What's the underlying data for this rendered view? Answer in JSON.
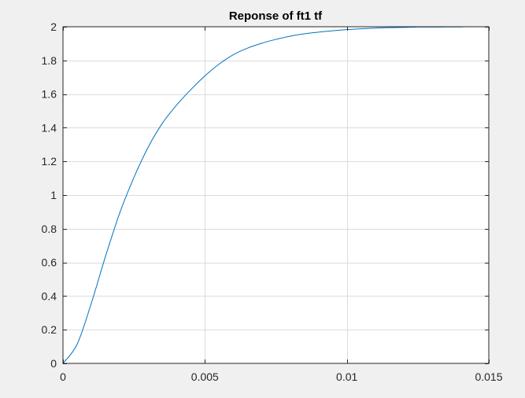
{
  "chart_data": {
    "type": "line",
    "title": "Reponse of ft1 tf",
    "xlabel": "",
    "ylabel": "",
    "xlim": [
      0,
      0.015
    ],
    "ylim": [
      0,
      2
    ],
    "xticks": [
      0,
      0.005,
      0.01,
      0.015
    ],
    "xtick_labels": [
      "0",
      "0.005",
      "0.01",
      "0.015"
    ],
    "yticks": [
      0,
      0.2,
      0.4,
      0.6,
      0.8,
      1,
      1.2,
      1.4,
      1.6,
      1.8,
      2
    ],
    "ytick_labels": [
      "0",
      "0.2",
      "0.4",
      "0.6",
      "0.8",
      "1",
      "1.2",
      "1.4",
      "1.6",
      "1.8",
      "2"
    ],
    "grid": true,
    "series": [
      {
        "color": "#0072bd",
        "x": [
          0,
          0.0005,
          0.001,
          0.0015,
          0.002,
          0.0025,
          0.003,
          0.0035,
          0.004,
          0.0045,
          0.005,
          0.0055,
          0.006,
          0.0065,
          0.007,
          0.0075,
          0.008,
          0.0085,
          0.009,
          0.0095,
          0.01,
          0.0105,
          0.011,
          0.0115,
          0.012,
          0.0125,
          0.013,
          0.0135,
          0.014,
          0.0142
        ],
        "y": [
          0,
          0.114,
          0.358,
          0.637,
          0.894,
          1.105,
          1.284,
          1.426,
          1.534,
          1.626,
          1.708,
          1.778,
          1.834,
          1.873,
          1.902,
          1.925,
          1.944,
          1.958,
          1.968,
          1.976,
          1.983,
          1.988,
          1.992,
          1.995,
          1.996,
          1.998,
          1.998,
          1.999,
          1.999,
          2.0
        ]
      }
    ]
  },
  "colors": {
    "background": "#f0f0f0",
    "axes": "#ffffff",
    "grid": "#dcdcdc",
    "line": "#0072bd"
  }
}
